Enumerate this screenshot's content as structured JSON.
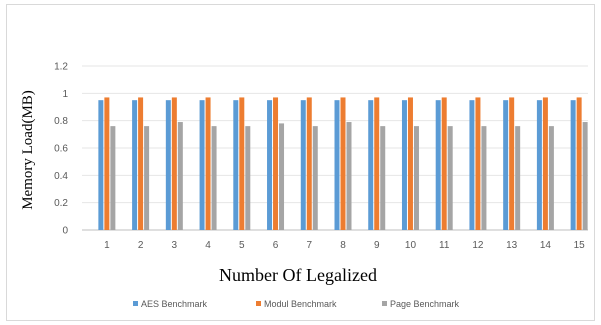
{
  "chart_data": {
    "type": "bar",
    "title": "",
    "xlabel": "Number Of Legalized",
    "ylabel": "Memory Load(MB)",
    "ylim": [
      0,
      1.2
    ],
    "yticks": [
      "0",
      "0.2",
      "0.4",
      "0.6",
      "0.8",
      "1",
      "1.2"
    ],
    "grid": true,
    "legend_position": "bottom",
    "categories": [
      "1",
      "2",
      "3",
      "4",
      "5",
      "6",
      "7",
      "8",
      "9",
      "10",
      "11",
      "12",
      "13",
      "14",
      "15"
    ],
    "series": [
      {
        "name": "AES Benchmark",
        "color": "#5b9bd5",
        "values": [
          0.95,
          0.95,
          0.95,
          0.95,
          0.95,
          0.95,
          0.95,
          0.95,
          0.95,
          0.95,
          0.95,
          0.95,
          0.95,
          0.95,
          0.95
        ]
      },
      {
        "name": "Modul Benchmark",
        "color": "#ed7d31",
        "values": [
          0.97,
          0.97,
          0.97,
          0.97,
          0.97,
          0.97,
          0.97,
          0.97,
          0.97,
          0.97,
          0.97,
          0.97,
          0.97,
          0.97,
          0.97
        ]
      },
      {
        "name": "Page Benchmark",
        "color": "#a5a5a5",
        "values": [
          0.76,
          0.76,
          0.79,
          0.76,
          0.76,
          0.78,
          0.76,
          0.79,
          0.76,
          0.76,
          0.76,
          0.76,
          0.76,
          0.76,
          0.79
        ]
      }
    ]
  }
}
